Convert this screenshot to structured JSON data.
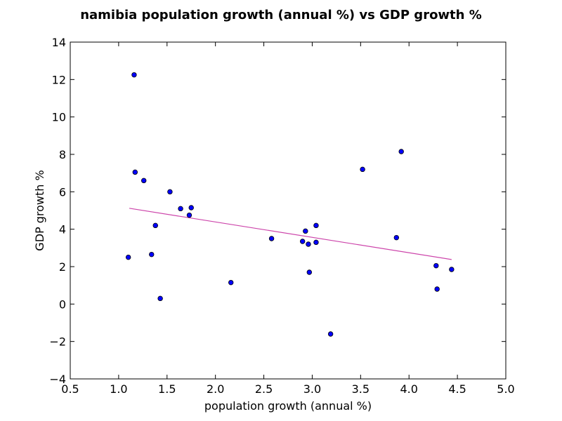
{
  "chart_data": {
    "type": "scatter",
    "title": "namibia population growth (annual %) vs GDP growth %",
    "xlabel": "population growth (annual %)",
    "ylabel": "GDP growth %",
    "xlim": [
      0.5,
      5.0
    ],
    "ylim": [
      -4,
      14
    ],
    "xticks": [
      "0.5",
      "1.0",
      "1.5",
      "2.0",
      "2.5",
      "3.0",
      "3.5",
      "4.0",
      "4.5",
      "5.0"
    ],
    "yticks": [
      "−4",
      "−2",
      "0",
      "2",
      "4",
      "6",
      "8",
      "10",
      "12",
      "14"
    ],
    "grid": false,
    "points": [
      {
        "x": 1.1,
        "y": 2.5
      },
      {
        "x": 1.16,
        "y": 12.25
      },
      {
        "x": 1.17,
        "y": 7.05
      },
      {
        "x": 1.26,
        "y": 6.6
      },
      {
        "x": 1.34,
        "y": 2.65
      },
      {
        "x": 1.38,
        "y": 4.2
      },
      {
        "x": 1.43,
        "y": 0.3
      },
      {
        "x": 1.53,
        "y": 6.0
      },
      {
        "x": 1.64,
        "y": 5.1
      },
      {
        "x": 1.73,
        "y": 4.75
      },
      {
        "x": 1.75,
        "y": 5.15
      },
      {
        "x": 2.16,
        "y": 1.15
      },
      {
        "x": 2.58,
        "y": 3.5
      },
      {
        "x": 2.9,
        "y": 3.35
      },
      {
        "x": 2.93,
        "y": 3.9
      },
      {
        "x": 2.96,
        "y": 3.2
      },
      {
        "x": 2.97,
        "y": 1.7
      },
      {
        "x": 3.04,
        "y": 4.2
      },
      {
        "x": 3.04,
        "y": 3.3
      },
      {
        "x": 3.19,
        "y": -1.6
      },
      {
        "x": 3.52,
        "y": 7.2
      },
      {
        "x": 3.87,
        "y": 3.55
      },
      {
        "x": 3.92,
        "y": 8.15
      },
      {
        "x": 4.28,
        "y": 2.05
      },
      {
        "x": 4.29,
        "y": 0.8
      },
      {
        "x": 4.44,
        "y": 1.85
      }
    ],
    "trend_line": {
      "x": [
        1.11,
        4.44
      ],
      "y": [
        5.12,
        2.38
      ]
    },
    "colors": {
      "point_fill": "#0000ff",
      "point_edge": "#000000",
      "trend_line": "#cc44aa"
    }
  }
}
